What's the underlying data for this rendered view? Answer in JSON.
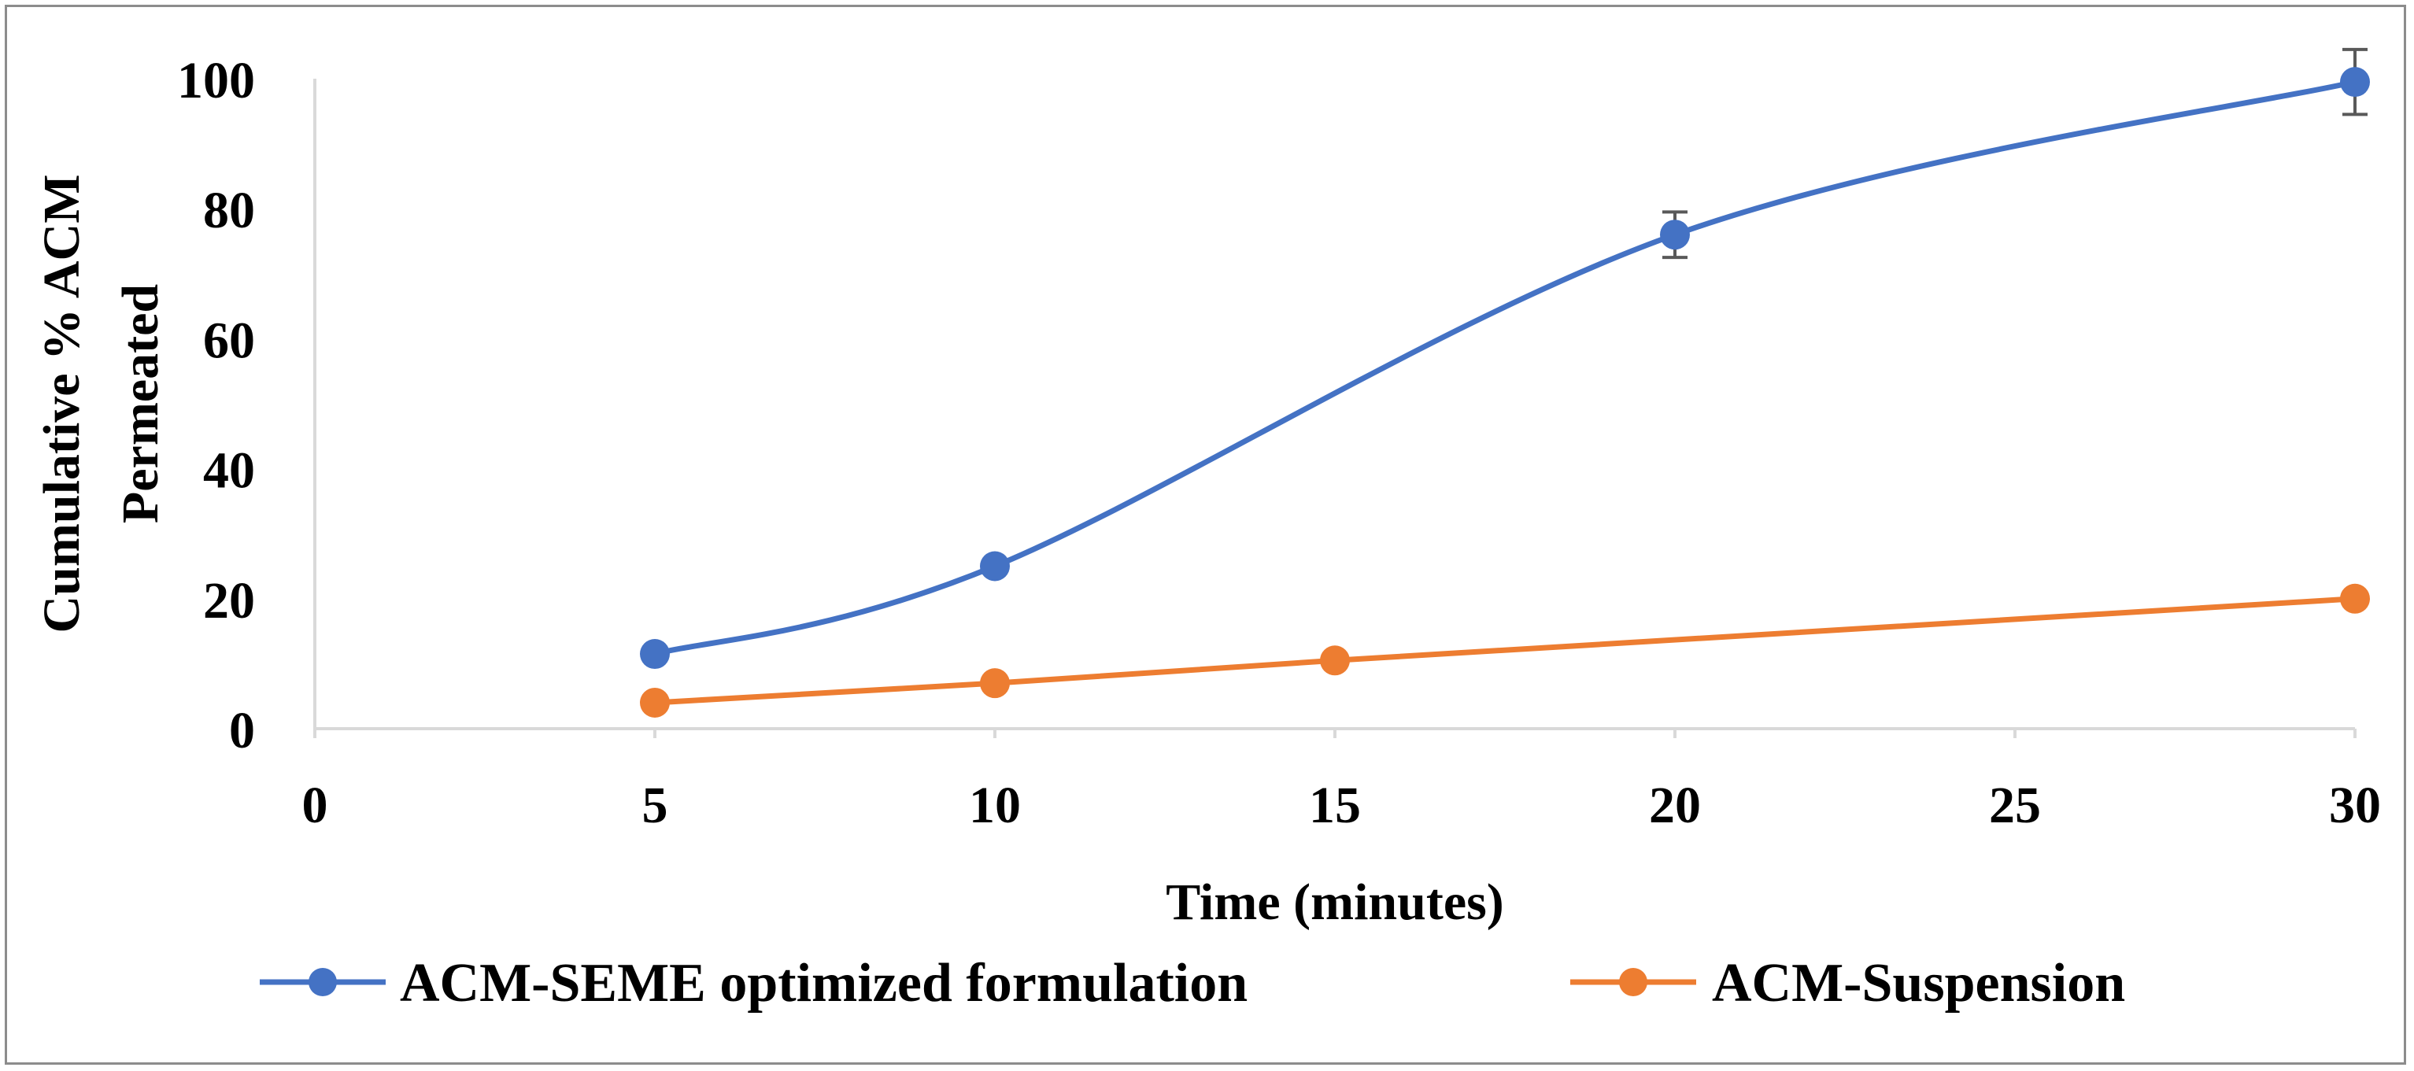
{
  "chart_data": {
    "type": "line",
    "title": "",
    "xlabel": "Time (minutes)",
    "ylabel_lines": [
      "Cumulative % ACM",
      "Permeated"
    ],
    "xlim": [
      0,
      30
    ],
    "ylim": [
      0,
      100
    ],
    "x_ticks": [
      "0",
      "5",
      "10",
      "15",
      "20",
      "25",
      "30"
    ],
    "y_ticks": [
      "0",
      "20",
      "40",
      "60",
      "80",
      "100"
    ],
    "grid": false,
    "legend_position": "bottom",
    "series": [
      {
        "name": "ACM-SEME optimized formulation",
        "color": "#4472C4",
        "smooth": true,
        "points": [
          {
            "x": 5,
            "y": 11.5
          },
          {
            "x": 10,
            "y": 25
          },
          {
            "x": 20,
            "y": 76,
            "err": 3.5
          },
          {
            "x": 30,
            "y": 99.5,
            "err": 5
          }
        ]
      },
      {
        "name": "ACM-Suspension",
        "color": "#ED7D31",
        "smooth": false,
        "points": [
          {
            "x": 5,
            "y": 4
          },
          {
            "x": 10,
            "y": 7
          },
          {
            "x": 15,
            "y": 10.5
          },
          {
            "x": 30,
            "y": 20
          }
        ]
      }
    ]
  }
}
